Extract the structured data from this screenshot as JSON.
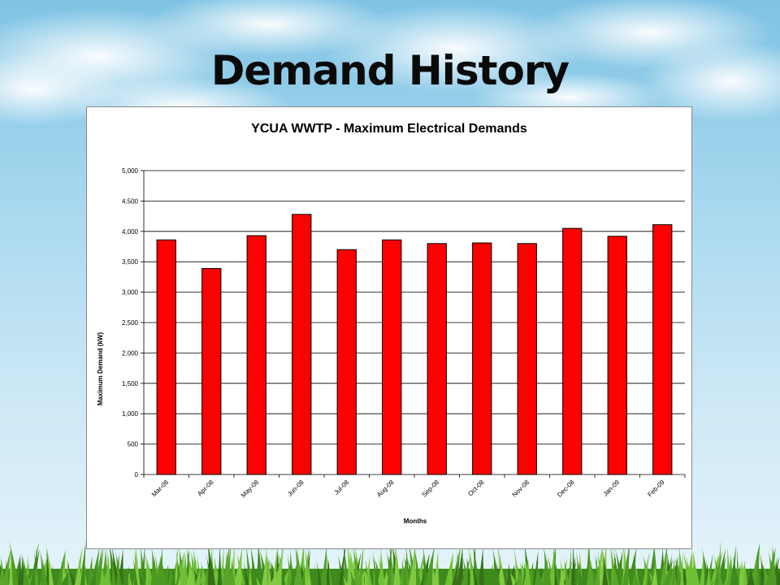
{
  "slide": {
    "title": "Demand History"
  },
  "colors": {
    "bar_fill": "#ff0000",
    "bar_stroke": "#000000",
    "grid": "#000000",
    "background_sky": "#a8d8ef",
    "grass": "#4f9a24"
  },
  "chart_data": {
    "type": "bar",
    "title": "YCUA WWTP - Maximum Electrical Demands",
    "xlabel": "Months",
    "ylabel": "Maximum Demand (kW)",
    "ylim": [
      0,
      5000
    ],
    "yticks": [
      0,
      500,
      1000,
      1500,
      2000,
      2500,
      3000,
      3500,
      4000,
      4500,
      5000
    ],
    "ytick_labels": [
      "0",
      "500",
      "1,000",
      "1,500",
      "2,000",
      "2,500",
      "3,000",
      "3,500",
      "4,000",
      "4,500",
      "5,000"
    ],
    "grid": true,
    "legend": "none",
    "categories": [
      "Mar-08",
      "Apr-08",
      "May-08",
      "Jun-08",
      "Jul-08",
      "Aug-08",
      "Sep-08",
      "Oct-08",
      "Nov-08",
      "Dec-08",
      "Jan-09",
      "Feb-09"
    ],
    "values": [
      3860,
      3390,
      3930,
      4280,
      3700,
      3860,
      3800,
      3810,
      3800,
      4050,
      3920,
      4110
    ]
  }
}
